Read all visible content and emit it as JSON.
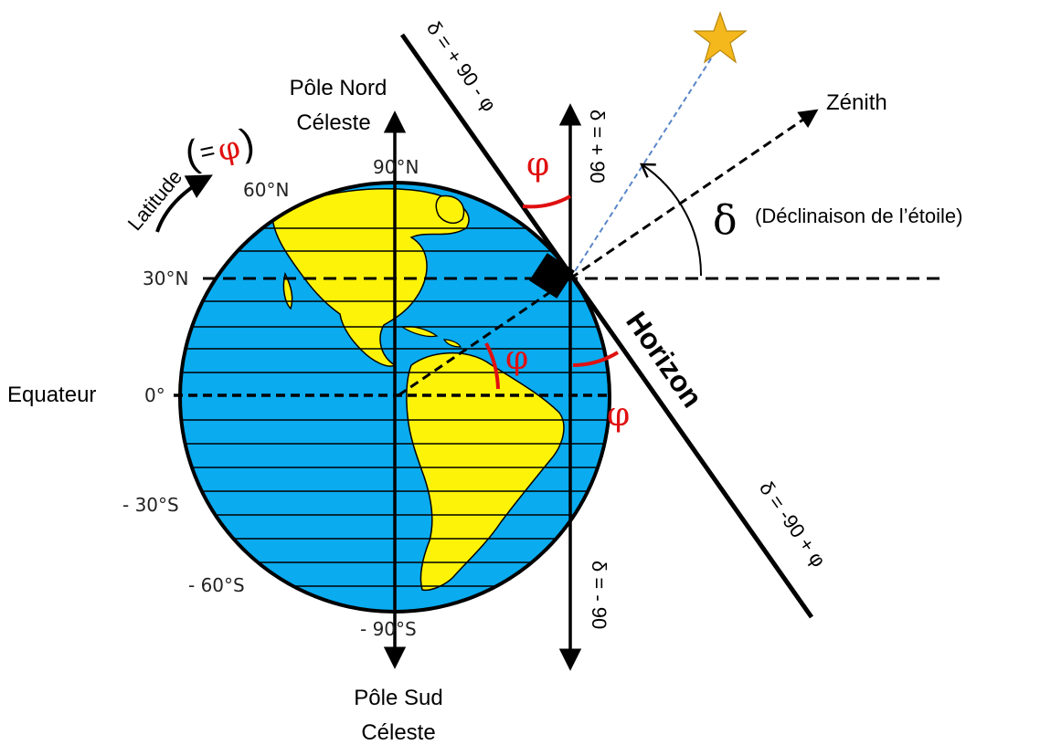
{
  "labels": {
    "north_pole_line1": "Pôle Nord",
    "north_pole_line2": "Céleste",
    "south_pole_line1": "Pôle Sud",
    "south_pole_line2": "Céleste",
    "equator": "Equateur",
    "zenith": "Zénith",
    "horizon": "Horizon",
    "latitude_word": "Latitude",
    "latitude_paren_open": "(",
    "latitude_equals": "=",
    "latitude_phi": "φ",
    "latitude_paren_close": ")",
    "delta_symbol": "δ",
    "declination_note": "(Déclinaison de l’étoile)",
    "phi": "φ"
  },
  "latitudes": {
    "lat_90n": "90°N",
    "lat_60n": "60°N",
    "lat_30n": "30°N",
    "lat_0": "0°",
    "lat_30s": "- 30°S",
    "lat_60s": "- 60°S",
    "lat_90s": "- 90°S"
  },
  "formulas": {
    "upper_diagonal": "δ = + 90 - φ",
    "vertical_top": "δ = + 90",
    "vertical_bottom": "δ = - 90",
    "lower_diagonal": "δ = -90 + φ"
  },
  "colors": {
    "ocean": "#0aabef",
    "land": "#fdf308",
    "phi_red": "#e01010",
    "star_fill": "#f5b81c",
    "star_ray": "#5a86c8"
  }
}
